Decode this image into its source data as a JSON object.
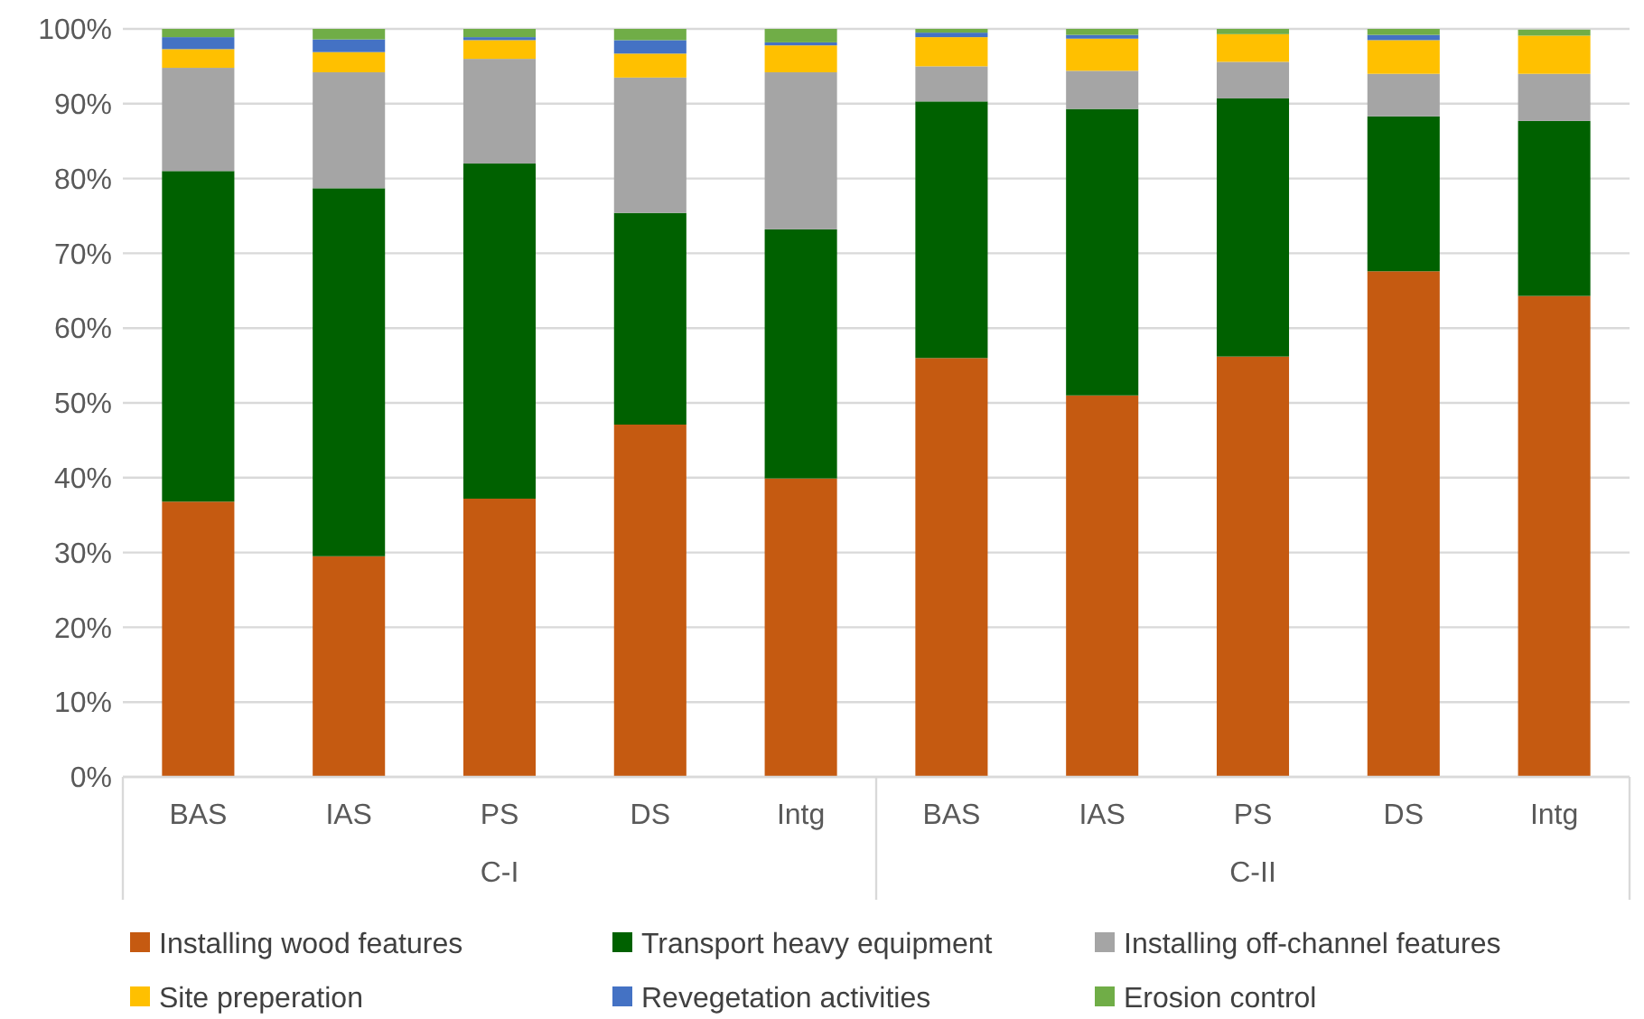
{
  "chart_data": {
    "type": "bar",
    "stacked": true,
    "categories": [
      "BAS",
      "IAS",
      "PS",
      "DS",
      "Intg",
      "BAS",
      "IAS",
      "PS",
      "DS",
      "Intg"
    ],
    "annotations": [
      "C-I",
      "C-II"
    ],
    "series": [
      {
        "name": "Installing wood features",
        "color": "#c55a11",
        "values": [
          36.8,
          29.5,
          37.2,
          47.1,
          39.9,
          56.0,
          51.0,
          56.2,
          67.6,
          64.3
        ]
      },
      {
        "name": "Transport heavy equipment",
        "color": "#006100",
        "values": [
          44.2,
          49.2,
          44.8,
          28.3,
          33.3,
          34.3,
          38.3,
          34.5,
          20.7,
          23.4
        ]
      },
      {
        "name": "Installing off-channel features",
        "color": "#a5a5a5",
        "values": [
          13.8,
          15.5,
          14.0,
          18.1,
          21.0,
          4.7,
          5.1,
          4.9,
          5.7,
          6.3
        ]
      },
      {
        "name": "Site preperation",
        "color": "#ffc000",
        "values": [
          2.5,
          2.7,
          2.5,
          3.2,
          3.6,
          3.9,
          4.3,
          3.7,
          4.5,
          5.1
        ]
      },
      {
        "name": "Revegetation activities",
        "color": "#4472c4",
        "values": [
          1.6,
          1.7,
          0.4,
          1.8,
          0.4,
          0.6,
          0.5,
          null,
          0.7,
          null
        ]
      },
      {
        "name": "Erosion control",
        "color": "#70ad47",
        "values": [
          1.1,
          1.4,
          1.1,
          1.5,
          1.8,
          0.5,
          0.8,
          0.7,
          0.8,
          0.8
        ]
      }
    ],
    "ylim": [
      0,
      100
    ],
    "yticks": [
      {
        "value": 0,
        "label": "0%"
      },
      {
        "value": 10,
        "label": "10%"
      },
      {
        "value": 20,
        "label": "20%"
      },
      {
        "value": 30,
        "label": "30%"
      },
      {
        "value": 40,
        "label": "40%"
      },
      {
        "value": 50,
        "label": "50%"
      },
      {
        "value": 60,
        "label": "60%"
      },
      {
        "value": 70,
        "label": "70%"
      },
      {
        "value": 80,
        "label": "80%"
      },
      {
        "value": 90,
        "label": "90%"
      },
      {
        "value": 100,
        "label": "100%"
      }
    ],
    "grid": "y",
    "legend": "bottom"
  }
}
